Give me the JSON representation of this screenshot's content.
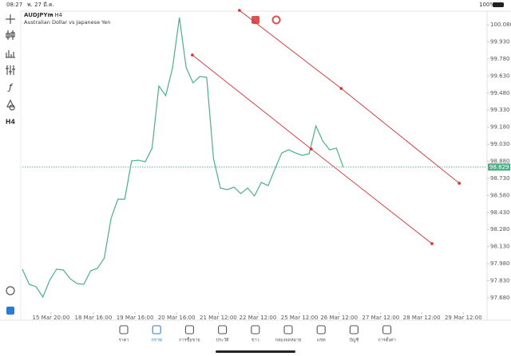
{
  "status_bar": {
    "time": "08:27",
    "date": "พ. 27 มี.ค.",
    "battery": "100%"
  },
  "chart_data": {
    "type": "line",
    "title": "AUDJPYm",
    "timeframe": "• H4",
    "subtitle": "Australian Dollar vs Japanese Yen",
    "x": [
      0,
      1,
      2,
      3,
      4,
      5,
      6,
      7,
      8,
      9,
      10,
      11,
      12,
      13,
      14,
      15,
      16,
      17,
      18,
      19,
      20,
      21,
      22,
      23,
      24,
      25,
      26,
      27,
      28,
      29,
      30,
      31,
      32,
      33,
      34,
      35,
      36,
      37,
      38,
      39,
      40,
      41,
      42,
      43,
      44,
      45,
      46,
      47
    ],
    "series": [
      {
        "color": "#4caf87",
        "values": [
          97.932,
          97.799,
          97.778,
          97.687,
          97.834,
          97.932,
          97.925,
          97.848,
          97.806,
          97.799,
          97.918,
          97.939,
          98.03,
          98.38,
          98.547,
          98.547,
          98.883,
          98.89,
          98.876,
          98.995,
          99.541,
          99.457,
          99.702,
          100.143,
          99.702,
          99.569,
          99.625,
          99.618,
          98.904,
          98.645,
          98.631,
          98.652,
          98.596,
          98.645,
          98.575,
          98.694,
          98.666,
          98.813,
          98.953,
          98.981,
          98.953,
          98.932,
          98.946,
          99.191,
          99.058,
          98.981,
          98.995,
          98.829
        ]
      }
    ],
    "trend_lines": [
      {
        "color": "#d32f2f",
        "x": [
          24.9,
          42.3,
          60.0
        ],
        "values": [
          99.814,
          98.988,
          98.156
        ]
      },
      {
        "color": "#d32f2f",
        "x": [
          31.8,
          46.7,
          64.0
        ],
        "values": [
          100.206,
          99.52,
          98.687
        ]
      }
    ],
    "current_price": 98.829,
    "xlim": [
      0,
      68
    ],
    "ylim": [
      97.554,
      100.199
    ],
    "xticks": [
      {
        "value": 4.2,
        "label": "15 Mar 20:00"
      },
      {
        "value": 10.4,
        "label": "18 Mar 16:00"
      },
      {
        "value": 16.5,
        "label": "19 Mar 16:00"
      },
      {
        "value": 22.6,
        "label": "20 Mar 16:00"
      },
      {
        "value": 28.7,
        "label": "21 Mar 12:00"
      },
      {
        "value": 34.5,
        "label": "22 Mar 12:00"
      },
      {
        "value": 40.6,
        "label": "25 Mar 12:00"
      },
      {
        "value": 46.4,
        "label": "26 Mar 12:00"
      },
      {
        "value": 52.5,
        "label": "27 Mar 12:00"
      },
      {
        "value": 58.5,
        "label": "28 Mar 12:00"
      },
      {
        "value": 64.6,
        "label": "29 Mar 12:00"
      }
    ],
    "yticks": [
      {
        "value": 100.08,
        "label": "100.080"
      },
      {
        "value": 99.93,
        "label": "99.930"
      },
      {
        "value": 99.78,
        "label": "99.780"
      },
      {
        "value": 99.63,
        "label": "99.630"
      },
      {
        "value": 99.48,
        "label": "99.480"
      },
      {
        "value": 99.33,
        "label": "99.330"
      },
      {
        "value": 99.18,
        "label": "99.180"
      },
      {
        "value": 99.03,
        "label": "99.030"
      },
      {
        "value": 98.88,
        "label": "98.880"
      },
      {
        "value": 98.73,
        "label": "98.730"
      },
      {
        "value": 98.58,
        "label": "98.580"
      },
      {
        "value": 98.43,
        "label": "98.430"
      },
      {
        "value": 98.28,
        "label": "98.280"
      },
      {
        "value": 98.13,
        "label": "98.130"
      },
      {
        "value": 97.98,
        "label": "97.980"
      },
      {
        "value": 97.83,
        "label": "97.830"
      },
      {
        "value": 97.68,
        "label": "97.680"
      }
    ]
  },
  "sidebar": {
    "timeframe": "H4"
  },
  "tab_bar": {
    "tabs": [
      "ราคา",
      "กราฟ",
      "การซื้อขาย",
      "ประวัติ",
      "ข่าว",
      "กล่องจดหมาย",
      "แชท",
      "บัญชี",
      "การตั้งค่า"
    ],
    "active": 1
  }
}
